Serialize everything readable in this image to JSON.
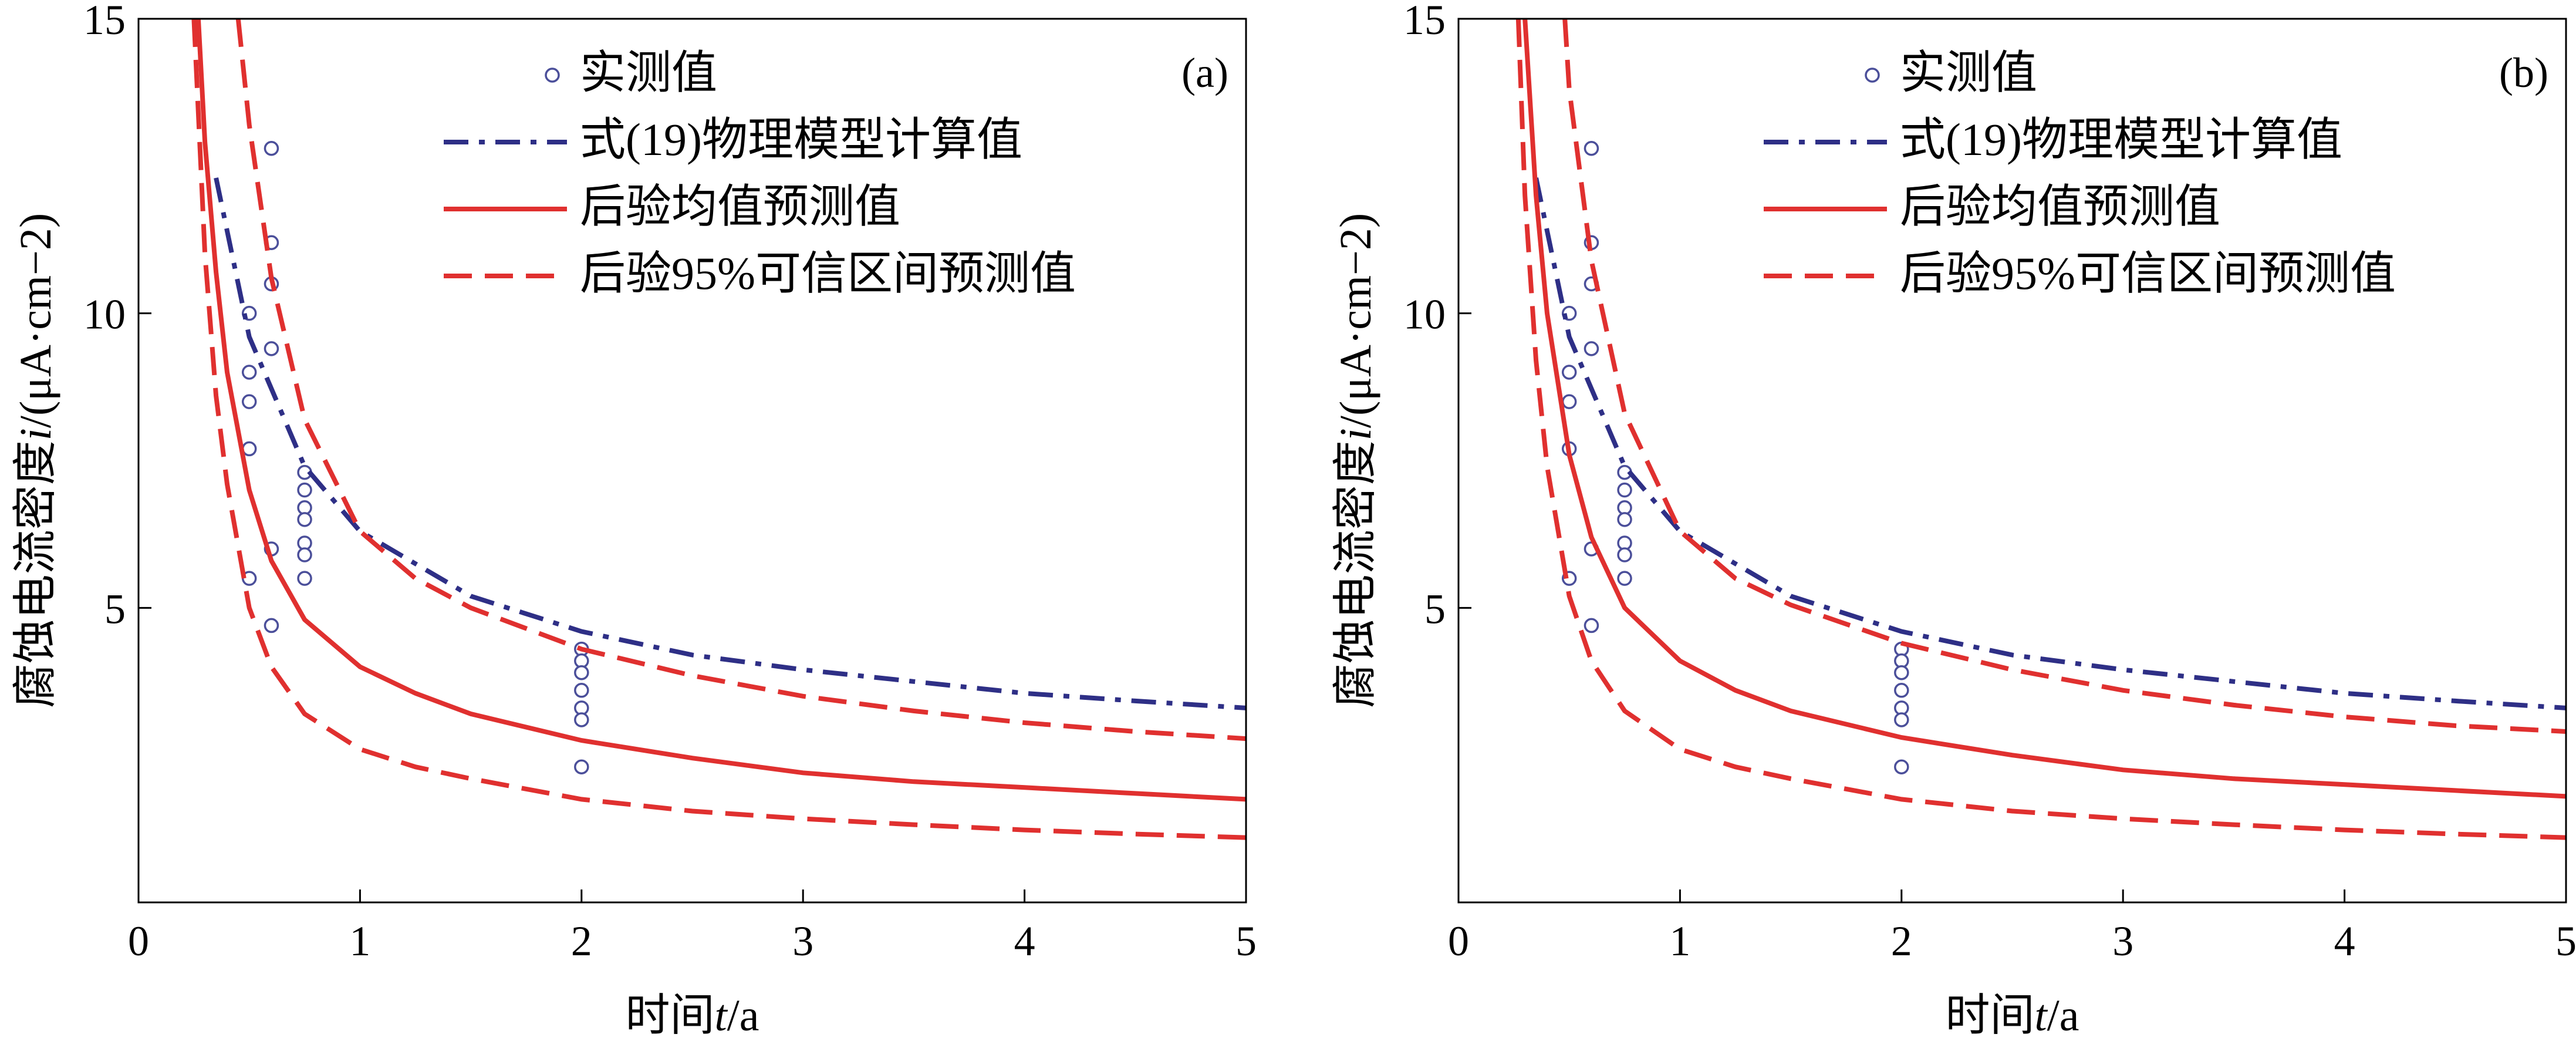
{
  "figure": {
    "background": "#ffffff"
  },
  "styles": {
    "measured": {
      "color": "#4b4f9a"
    },
    "physical": {
      "color": "#2e2f86"
    },
    "mean": {
      "color": "#e0302f"
    },
    "ci": {
      "color": "#e0302f"
    }
  },
  "chart_data": [
    {
      "type": "line",
      "panel_label": "(a)",
      "xlabel": "时间t/a",
      "ylabel": "腐蚀电流密度i/(μA·cm−2)",
      "xlim": [
        0,
        5
      ],
      "ylim": [
        0,
        15
      ],
      "x_ticks": [
        {
          "value": 0,
          "label": "0"
        },
        {
          "value": 1,
          "label": "1"
        },
        {
          "value": 2,
          "label": "2"
        },
        {
          "value": 3,
          "label": "3"
        },
        {
          "value": 4,
          "label": "4"
        },
        {
          "value": 5,
          "label": "5"
        }
      ],
      "y_ticks": [
        {
          "value": 5,
          "label": "5"
        },
        {
          "value": 10,
          "label": "10"
        },
        {
          "value": 15,
          "label": "15"
        }
      ],
      "grid": false,
      "legend_position": "top-right",
      "series": [
        {
          "name": "实测值",
          "kind": "scatter",
          "style_key": "measured",
          "x": [
            0.5,
            0.5,
            0.5,
            0.5,
            0.5,
            0.6,
            0.6,
            0.6,
            0.6,
            0.6,
            0.6,
            0.75,
            0.75,
            0.75,
            0.75,
            0.75,
            0.75,
            0.75,
            2.0,
            2.0,
            2.0,
            2.0,
            2.0,
            2.0,
            2.0
          ],
          "y": [
            10.0,
            9.0,
            8.5,
            7.7,
            5.5,
            12.8,
            11.2,
            10.5,
            9.4,
            6.0,
            4.7,
            7.3,
            7.0,
            6.7,
            6.5,
            6.1,
            5.9,
            5.5,
            4.3,
            4.1,
            3.9,
            3.6,
            3.3,
            3.1,
            2.3
          ]
        },
        {
          "name": "式(19)物理模型计算值",
          "kind": "line",
          "dash": "dashdot",
          "style_key": "physical",
          "x": [
            0.35,
            0.5,
            0.75,
            1,
            1.5,
            2,
            2.5,
            3,
            3.5,
            4,
            4.5,
            5
          ],
          "y": [
            12.3,
            9.6,
            7.4,
            6.3,
            5.2,
            4.6,
            4.2,
            3.95,
            3.75,
            3.55,
            3.42,
            3.3
          ]
        },
        {
          "name": "后验均值预测值",
          "kind": "line",
          "dash": "solid",
          "style_key": "mean",
          "x": [
            0.27,
            0.3,
            0.35,
            0.4,
            0.5,
            0.6,
            0.75,
            1,
            1.25,
            1.5,
            2,
            2.5,
            3,
            3.5,
            4,
            4.5,
            5
          ],
          "y": [
            15.0,
            12.9,
            10.7,
            9.0,
            7.0,
            5.8,
            4.8,
            4.0,
            3.55,
            3.2,
            2.75,
            2.45,
            2.2,
            2.05,
            1.95,
            1.85,
            1.75
          ]
        },
        {
          "name": "后验95%可信区间预测值",
          "kind": "band",
          "dash": "dashed",
          "style_key": "ci",
          "upper": {
            "x": [
              0.45,
              0.5,
              0.6,
              0.75,
              1,
              1.25,
              1.5,
              2,
              2.5,
              3,
              3.5,
              4,
              4.5,
              5
            ],
            "y": [
              15.0,
              13.2,
              10.6,
              8.2,
              6.3,
              5.5,
              5.0,
              4.3,
              3.85,
              3.5,
              3.25,
              3.05,
              2.9,
              2.78
            ]
          },
          "lower": {
            "x": [
              0.25,
              0.3,
              0.35,
              0.4,
              0.5,
              0.6,
              0.75,
              1,
              1.25,
              1.5,
              2,
              2.5,
              3,
              3.5,
              4,
              4.5,
              5
            ],
            "y": [
              15.0,
              11.0,
              8.6,
              7.1,
              5.0,
              4.0,
              3.2,
              2.6,
              2.3,
              2.1,
              1.75,
              1.55,
              1.42,
              1.32,
              1.23,
              1.16,
              1.1
            ]
          }
        }
      ]
    },
    {
      "type": "line",
      "panel_label": "(b)",
      "xlabel": "时间t/a",
      "ylabel": "腐蚀电流密度i/(μA·cm−2)",
      "xlim": [
        0,
        5
      ],
      "ylim": [
        0,
        15
      ],
      "x_ticks": [
        {
          "value": 0,
          "label": "0"
        },
        {
          "value": 1,
          "label": "1"
        },
        {
          "value": 2,
          "label": "2"
        },
        {
          "value": 3,
          "label": "3"
        },
        {
          "value": 4,
          "label": "4"
        },
        {
          "value": 5,
          "label": "5"
        }
      ],
      "y_ticks": [
        {
          "value": 5,
          "label": "5"
        },
        {
          "value": 10,
          "label": "10"
        },
        {
          "value": 15,
          "label": "15"
        }
      ],
      "grid": false,
      "legend_position": "top-right",
      "series": [
        {
          "name": "实测值",
          "kind": "scatter",
          "style_key": "measured",
          "x": [
            0.5,
            0.5,
            0.5,
            0.5,
            0.5,
            0.6,
            0.6,
            0.6,
            0.6,
            0.6,
            0.6,
            0.75,
            0.75,
            0.75,
            0.75,
            0.75,
            0.75,
            0.75,
            2.0,
            2.0,
            2.0,
            2.0,
            2.0,
            2.0,
            2.0
          ],
          "y": [
            10.0,
            9.0,
            8.5,
            7.7,
            5.5,
            12.8,
            11.2,
            10.5,
            9.4,
            6.0,
            4.7,
            7.3,
            7.0,
            6.7,
            6.5,
            6.1,
            5.9,
            5.5,
            4.3,
            4.1,
            3.9,
            3.6,
            3.3,
            3.1,
            2.3
          ]
        },
        {
          "name": "式(19)物理模型计算值",
          "kind": "line",
          "dash": "dashdot",
          "style_key": "physical",
          "x": [
            0.35,
            0.5,
            0.75,
            1,
            1.5,
            2,
            2.5,
            3,
            3.5,
            4,
            4.5,
            5
          ],
          "y": [
            12.3,
            9.6,
            7.4,
            6.3,
            5.2,
            4.6,
            4.2,
            3.95,
            3.75,
            3.55,
            3.42,
            3.3
          ]
        },
        {
          "name": "后验均值预测值",
          "kind": "line",
          "dash": "solid",
          "style_key": "mean",
          "x": [
            0.3,
            0.35,
            0.4,
            0.5,
            0.6,
            0.75,
            1,
            1.25,
            1.5,
            2,
            2.5,
            3,
            3.5,
            4,
            4.5,
            5
          ],
          "y": [
            15.0,
            12.0,
            10.0,
            7.6,
            6.2,
            5.0,
            4.1,
            3.6,
            3.25,
            2.8,
            2.5,
            2.25,
            2.1,
            2.0,
            1.9,
            1.8
          ]
        },
        {
          "name": "后验95%可信区间预测值",
          "kind": "band",
          "dash": "dashed",
          "style_key": "ci",
          "upper": {
            "x": [
              0.48,
              0.5,
              0.6,
              0.75,
              1,
              1.25,
              1.5,
              2,
              2.5,
              3,
              3.5,
              4,
              4.5,
              5
            ],
            "y": [
              15.0,
              13.8,
              10.9,
              8.3,
              6.3,
              5.5,
              5.05,
              4.4,
              3.95,
              3.6,
              3.35,
              3.15,
              3.0,
              2.9
            ]
          },
          "lower": {
            "x": [
              0.27,
              0.3,
              0.35,
              0.4,
              0.5,
              0.6,
              0.75,
              1,
              1.25,
              1.5,
              2,
              2.5,
              3,
              3.5,
              4,
              4.5,
              5
            ],
            "y": [
              15.0,
              12.0,
              9.2,
              7.4,
              5.2,
              4.1,
              3.25,
              2.6,
              2.3,
              2.1,
              1.75,
              1.55,
              1.42,
              1.32,
              1.23,
              1.16,
              1.1
            ]
          }
        }
      ]
    }
  ]
}
